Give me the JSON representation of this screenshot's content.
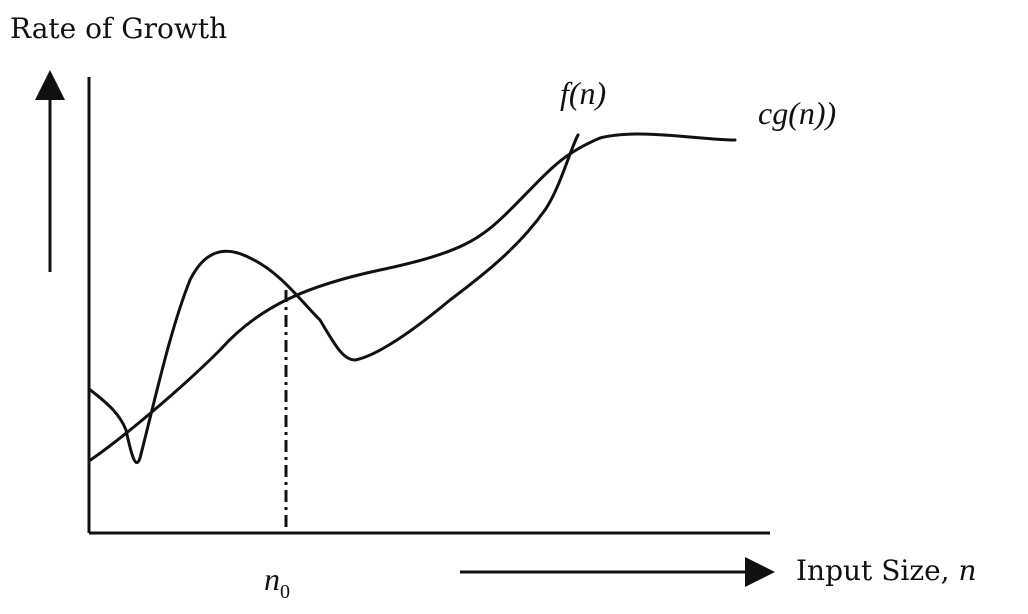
{
  "diagram": {
    "y_axis_title": "Rate of Growth",
    "x_axis_title_text": "Input Size, ",
    "x_axis_title_var": "n",
    "curve_f_label": "f(n)",
    "curve_cg_label": "cg(n))",
    "threshold_label_base": "n",
    "threshold_label_sub": "0",
    "colors": {
      "ink": "#111111",
      "background": "#ffffff"
    }
  }
}
